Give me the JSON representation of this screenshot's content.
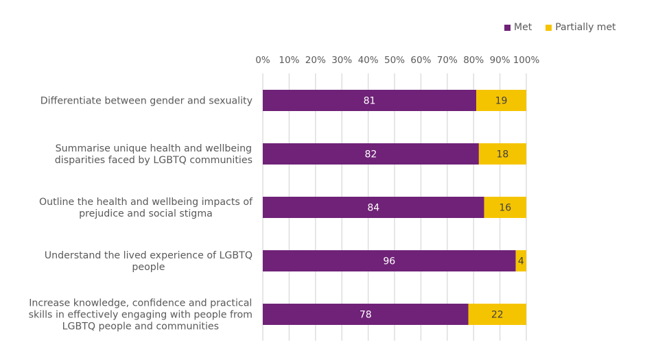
{
  "chart_data": {
    "type": "bar",
    "orientation": "horizontal",
    "stacked": true,
    "title": "",
    "xlabel": "",
    "ylabel": "",
    "xlim": [
      0,
      100
    ],
    "x_ticks": [
      "0%",
      "10%",
      "20%",
      "30%",
      "40%",
      "50%",
      "60%",
      "70%",
      "80%",
      "90%",
      "100%"
    ],
    "x_axis_position": "top",
    "grid": true,
    "legend_position": "top-right",
    "categories": [
      [
        "Differentiate between gender and sexuality"
      ],
      [
        "Summarise unique health and wellbeing",
        "disparities faced by LGBTQ communities"
      ],
      [
        "Outline the health and wellbeing impacts of",
        "prejudice and social stigma"
      ],
      [
        "Understand the lived experience of LGBTQ",
        "people"
      ],
      [
        "Increase knowledge, confidence and practical",
        "skills in effectively engaging with people from",
        "LGBTQ people and communities"
      ]
    ],
    "series": [
      {
        "name": "Met",
        "color": "#6f2277",
        "label_color": "#ffffff",
        "values": [
          81,
          82,
          84,
          96,
          78
        ]
      },
      {
        "name": "Partially met",
        "color": "#f5c400",
        "label_color": "#404040",
        "values": [
          19,
          18,
          16,
          4,
          22
        ]
      }
    ]
  }
}
